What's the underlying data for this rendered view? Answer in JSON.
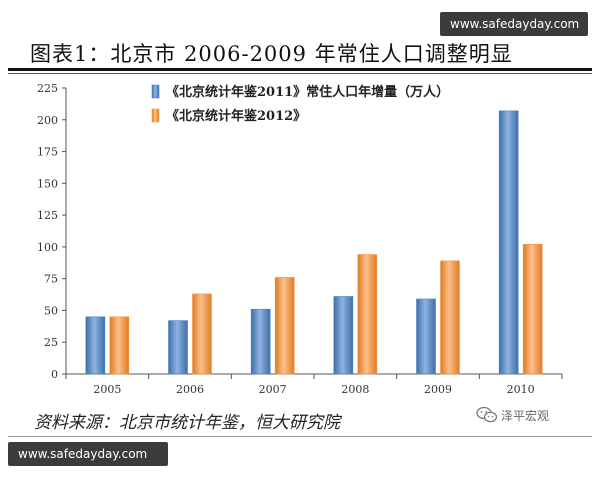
{
  "watermark_top": "www.safedayday.com",
  "watermark_bottom": "www.safedayday.com",
  "title": "图表1：北京市 2006-2009 年常住人口调整明显",
  "source": "资料来源：北京市统计年鉴，恒大研究院",
  "brand": {
    "name": "泽平宏观",
    "icon": "wechat-icon"
  },
  "colors": {
    "series_1": "#4f81bd",
    "series_2": "#f79646",
    "axis": "#555555"
  },
  "chart_data": {
    "type": "bar",
    "categories": [
      "2005",
      "2006",
      "2007",
      "2008",
      "2009",
      "2010"
    ],
    "series": [
      {
        "name": "《北京统计年鉴2011》常住人口年增量（万人）",
        "values": [
          45,
          42,
          51,
          61,
          59,
          207
        ]
      },
      {
        "name": "《北京统计年鉴2012》",
        "values": [
          45,
          63,
          76,
          94,
          89,
          102
        ]
      }
    ],
    "y_ticks": [
      "0",
      "25",
      "50",
      "75",
      "100",
      "125",
      "150",
      "175",
      "200",
      "225"
    ],
    "ylim": [
      0,
      225
    ],
    "grid": false,
    "legend_position": "top-left"
  }
}
